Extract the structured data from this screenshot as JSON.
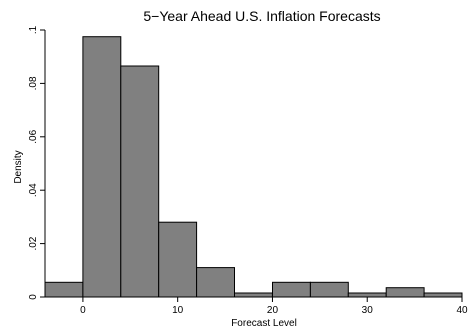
{
  "chart_data": {
    "type": "bar",
    "title": "5−Year Ahead U.S. Inflation Forecasts",
    "xlabel": "Forecast Level",
    "ylabel": "Density",
    "bar_color": "#808080",
    "bin_edges": [
      -4,
      0,
      4,
      8,
      12,
      16,
      20,
      24,
      28,
      32,
      36,
      40
    ],
    "values": [
      0.0055,
      0.0975,
      0.0865,
      0.028,
      0.011,
      0.0015,
      0.0055,
      0.0055,
      0.0015,
      0.0035,
      0.0015
    ],
    "xlim": [
      -4,
      40
    ],
    "ylim": [
      0,
      0.1
    ],
    "xticks": [
      0,
      10,
      20,
      30,
      40
    ],
    "xtick_labels": [
      "0",
      "10",
      "20",
      "30",
      "40"
    ],
    "yticks": [
      0,
      0.02,
      0.04,
      0.06,
      0.08,
      0.1
    ],
    "ytick_labels": [
      "0",
      ".02",
      ".04",
      ".06",
      ".08",
      ".1"
    ],
    "grid": false,
    "legend": "none"
  }
}
